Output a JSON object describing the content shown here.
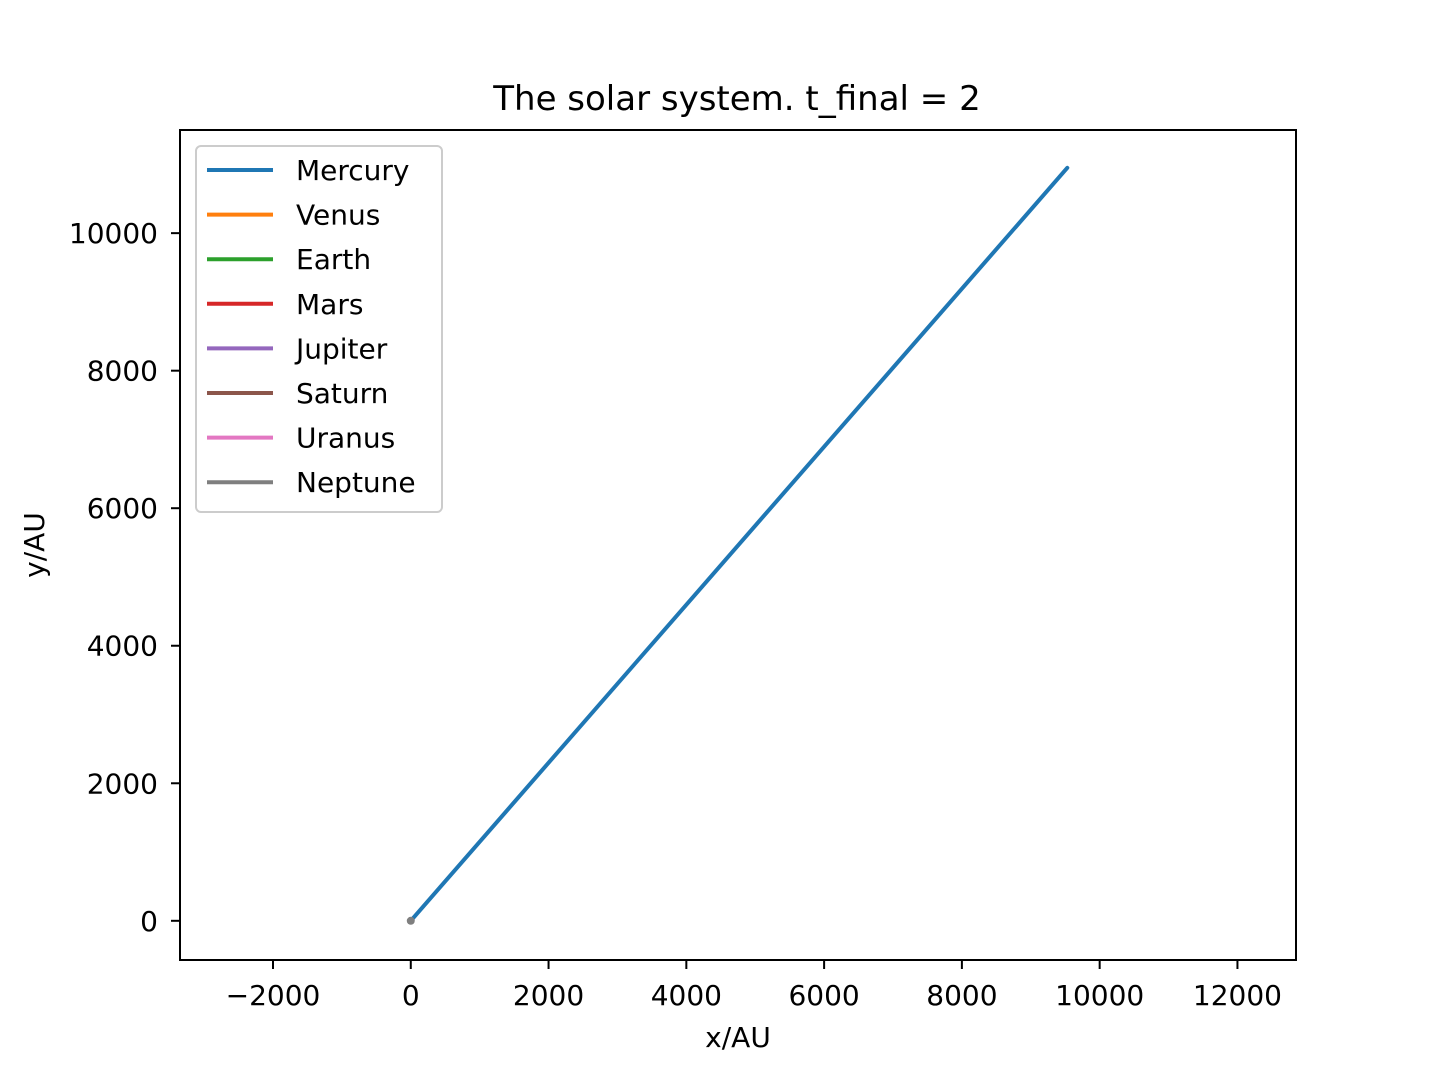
{
  "chart_data": {
    "type": "line",
    "title": "The solar system. t_final = 2",
    "xlabel": "x/AU",
    "ylabel": "y/AU",
    "xlim": [
      -3350,
      12850
    ],
    "ylim": [
      -570,
      11500
    ],
    "xticks": [
      -2000,
      0,
      2000,
      4000,
      6000,
      8000,
      10000,
      12000
    ],
    "xtick_labels": [
      "−2000",
      "0",
      "2000",
      "4000",
      "6000",
      "8000",
      "10000",
      "12000"
    ],
    "yticks": [
      0,
      2000,
      4000,
      6000,
      8000,
      10000
    ],
    "ytick_labels": [
      "0",
      "2000",
      "4000",
      "6000",
      "8000",
      "10000"
    ],
    "grid": false,
    "legend_position": "upper-left",
    "series": [
      {
        "name": "Mercury",
        "color": "#1f77b4",
        "x": [
          0,
          9530
        ],
        "y": [
          0,
          10950
        ]
      },
      {
        "name": "Venus",
        "color": "#ff7f0e",
        "x": [
          0,
          0
        ],
        "y": [
          0,
          0
        ]
      },
      {
        "name": "Earth",
        "color": "#2ca02c",
        "x": [
          0,
          0
        ],
        "y": [
          0,
          0
        ]
      },
      {
        "name": "Mars",
        "color": "#d62728",
        "x": [
          0,
          0
        ],
        "y": [
          0,
          0
        ]
      },
      {
        "name": "Jupiter",
        "color": "#9467bd",
        "x": [
          0,
          0
        ],
        "y": [
          0,
          0
        ]
      },
      {
        "name": "Saturn",
        "color": "#8c564b",
        "x": [
          0,
          0
        ],
        "y": [
          0,
          0
        ]
      },
      {
        "name": "Uranus",
        "color": "#e377c2",
        "x": [
          0,
          0
        ],
        "y": [
          0,
          0
        ]
      },
      {
        "name": "Neptune",
        "color": "#7f7f7f",
        "x": [
          0,
          0
        ],
        "y": [
          0,
          0
        ]
      }
    ]
  }
}
